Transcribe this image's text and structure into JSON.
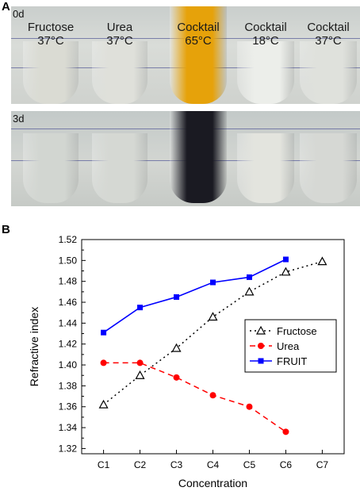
{
  "panel_a": {
    "letter": "A",
    "rows": [
      {
        "day": "0d"
      },
      {
        "day": "3d"
      }
    ],
    "tubes": [
      {
        "line1": "Fructose",
        "line2": "37°C",
        "color_0d": "#dadbd3",
        "color_3d": "#d2d6d1"
      },
      {
        "line1": "Urea",
        "line2": "37°C",
        "color_0d": "#dfe0da",
        "color_3d": "#d5d8d3"
      },
      {
        "line1": "Cocktail",
        "line2": "65°C",
        "color_0d": "#e6a20a",
        "color_3d": "#1a1a22"
      },
      {
        "line1": "Cocktail",
        "line2": "18°C",
        "color_0d": "#eceeea",
        "color_3d": "#e3e4de"
      },
      {
        "line1": "Cocktail",
        "line2": "37°C",
        "color_0d": "#dfe1dc",
        "color_3d": "#d6d8d4"
      }
    ]
  },
  "panel_b": {
    "letter": "B"
  },
  "chart_data": {
    "type": "line",
    "xlabel": "Concentration",
    "ylabel": "Refractive index",
    "categories": [
      "C1",
      "C2",
      "C3",
      "C4",
      "C5",
      "C6",
      "C7"
    ],
    "ylim": [
      1.315,
      1.52
    ],
    "yticks": [
      "1.32",
      "1.34",
      "1.36",
      "1.38",
      "1.40",
      "1.42",
      "1.44",
      "1.46",
      "1.48",
      "1.50",
      "1.52"
    ],
    "legend_position": "right",
    "series": [
      {
        "name": "Fructose",
        "color": "#000000",
        "marker": "open-triangle",
        "line": "dotted",
        "values": [
          1.362,
          1.39,
          1.416,
          1.446,
          1.47,
          1.489,
          1.499
        ]
      },
      {
        "name": "Urea",
        "color": "#ff0000",
        "marker": "circle",
        "line": "dashed",
        "values": [
          1.402,
          1.402,
          1.388,
          1.371,
          1.36,
          1.336,
          null
        ]
      },
      {
        "name": "FRUIT",
        "color": "#0000ff",
        "marker": "square",
        "line": "solid",
        "values": [
          1.431,
          1.455,
          1.465,
          1.479,
          1.484,
          1.501,
          null
        ]
      }
    ]
  }
}
